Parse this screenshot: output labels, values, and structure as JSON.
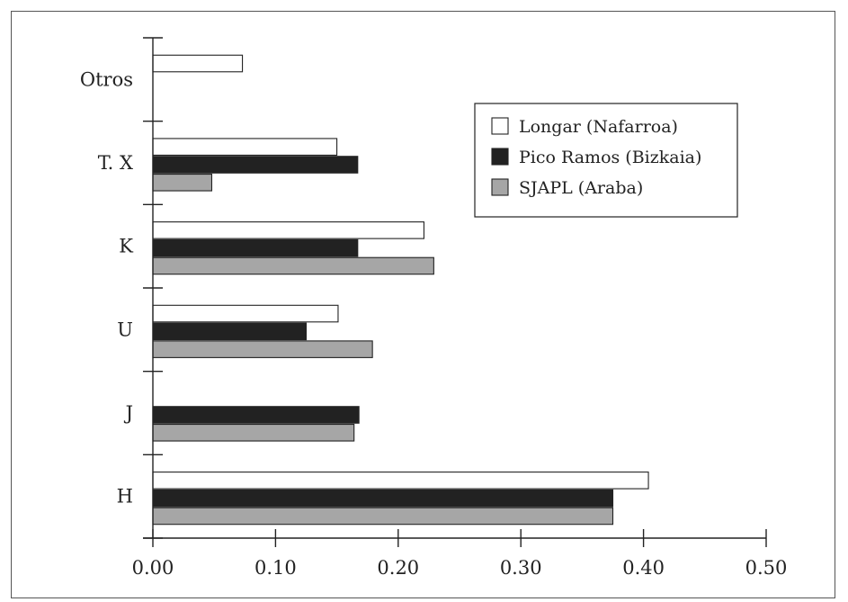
{
  "chart_data": {
    "type": "bar",
    "orientation": "horizontal",
    "categories": [
      "Otros",
      "T. X",
      "K",
      "U",
      "J",
      "H"
    ],
    "series": [
      {
        "name": "Longar (Nafarroa)",
        "color": "#ffffff",
        "values": [
          0.073,
          0.15,
          0.221,
          0.151,
          null,
          0.404
        ]
      },
      {
        "name": "Pico Ramos (Bizkaia)",
        "color": "#222222",
        "values": [
          null,
          0.167,
          0.167,
          0.125,
          0.168,
          0.375
        ]
      },
      {
        "name": "SJAPL (Araba)",
        "color": "#a6a6a6",
        "values": [
          null,
          0.048,
          0.229,
          0.179,
          0.164,
          0.375
        ]
      }
    ],
    "x_ticks": [
      "0.00",
      "0.10",
      "0.20",
      "0.30",
      "0.40",
      "0.50"
    ],
    "xlim": [
      0,
      0.5
    ],
    "title": "",
    "xlabel": "",
    "ylabel": "",
    "grid": false,
    "legend_position": "top-right"
  }
}
